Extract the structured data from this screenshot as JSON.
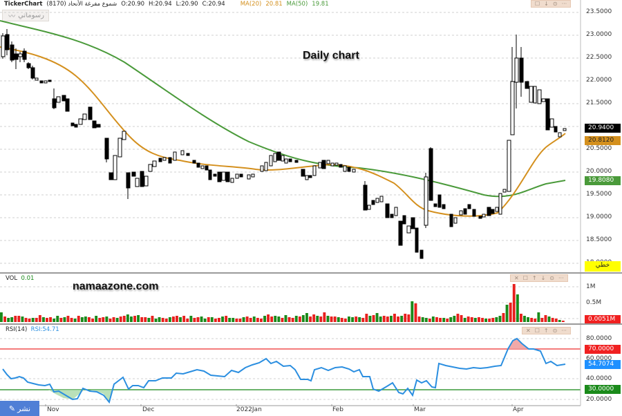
{
  "header": {
    "app": "TickerChart",
    "symbol_text": "شموع مفرغة الأنحاد (8170)",
    "open": "O:20.90",
    "high": "H:20.94",
    "low": "L:20.90",
    "close": "C:20.94",
    "ma20_label": "MA(20)",
    "ma20_value": "20.81",
    "ma50_label": "MA(50)",
    "ma50_value": "19.81"
  },
  "draw_button": {
    "label": "رسوماتي",
    "icon": "line-chart-icon"
  },
  "annotations": {
    "title": "Daily chart",
    "watermark": "namaazone.com"
  },
  "price_axis": {
    "ticks": [
      "23.5000",
      "23.0000",
      "22.5000",
      "22.0000",
      "21.5000",
      "21.0000",
      "20.5000",
      "20.0000",
      "19.5000",
      "19.0000",
      "18.5000",
      "18.0000"
    ],
    "last_tag": "20.9400",
    "ma20_tag": "20.8120",
    "ma50_tag": "19.8080",
    "mode_label": "خطي"
  },
  "volume_pane": {
    "title": "VOL",
    "value": "0.01",
    "ticks": [
      "1M",
      "0.5M"
    ],
    "last_tag": "0.0051M"
  },
  "rsi_pane": {
    "title": "RSI(14)",
    "value": "RSI:54.71",
    "ticks": [
      "80.0000",
      "60.0000",
      "40.0000",
      "20.0000"
    ],
    "overbought_tag": "70.0000",
    "rsi_tag": "54.7074",
    "oversold_tag": "30.0000"
  },
  "x_axis": {
    "labels": [
      "Nov",
      "Dec",
      "2022Jan",
      "Feb",
      "Mar",
      "Apr"
    ]
  },
  "publish_button": {
    "label": "نشر",
    "icon": "pencil-icon"
  },
  "colors": {
    "ma20": "#d4901e",
    "ma50": "#4a9a3a",
    "up_vol": "#1a8a1a",
    "down_vol": "#e8201e",
    "rsi": "#2a8ee0",
    "overbought": "#f02020",
    "oversold": "#1a8a1a",
    "last": "#000000"
  },
  "chart_data": [
    {
      "type": "candlestick",
      "title": "Daily chart",
      "ylim": [
        18.0,
        23.5
      ],
      "x_labels": [
        "Nov",
        "Dec",
        "2022Jan",
        "Feb",
        "Mar",
        "Apr"
      ],
      "series": [
        {
          "name": "Price close (approx)",
          "values": [
            22.8,
            22.6,
            22.5,
            22.3,
            22.0,
            21.9,
            21.7,
            21.3,
            21.1,
            21.0,
            20.6,
            20.0,
            20.7,
            21.0,
            20.3,
            20.2,
            20.0,
            20.5,
            20.4,
            20.6,
            20.3,
            20.0,
            19.9,
            20.1,
            20.0,
            20.2,
            20.3,
            20.4,
            20.3,
            20.1,
            19.9,
            20.3,
            20.3,
            20.2,
            20.3,
            20.0,
            19.3,
            19.6,
            19.0,
            18.5,
            18.8,
            18.9,
            19.1,
            20.5,
            19.3,
            19.0,
            18.9,
            19.2,
            19.0,
            19.1,
            19.3,
            19.6,
            21.9,
            22.3,
            21.9,
            21.6,
            21.5,
            21.1,
            20.9,
            20.94
          ]
        },
        {
          "name": "MA(20)",
          "last": 20.812
        },
        {
          "name": "MA(50)",
          "last": 19.808
        }
      ],
      "last": {
        "open": 20.9,
        "high": 20.94,
        "low": 20.9,
        "close": 20.94
      }
    },
    {
      "type": "bar",
      "title": "VOL",
      "ylabel": "Volume",
      "ticks": [
        "0.5M",
        "1M"
      ],
      "peak": "~1.1M (late March)",
      "last": "0.0051M"
    },
    {
      "type": "line",
      "title": "RSI(14)",
      "ylim": [
        15,
        88
      ],
      "levels": {
        "overbought": 70,
        "oversold": 30
      },
      "last": 54.7074,
      "values": [
        62,
        56,
        52,
        53,
        51,
        47,
        46,
        44,
        44,
        45,
        38,
        37,
        34,
        31,
        32,
        38,
        36,
        35,
        28,
        18,
        46,
        49,
        41,
        46,
        45,
        47,
        50,
        49,
        52,
        52,
        53,
        55,
        54,
        50,
        48,
        47,
        46,
        47,
        52,
        57,
        60,
        64,
        63,
        60,
        49,
        48,
        56,
        58,
        57,
        53,
        30,
        33,
        28,
        35,
        25,
        38,
        29,
        56,
        52,
        51,
        50,
        52,
        55,
        79,
        81,
        71,
        70,
        61,
        57,
        58,
        54,
        55
      ]
    }
  ]
}
